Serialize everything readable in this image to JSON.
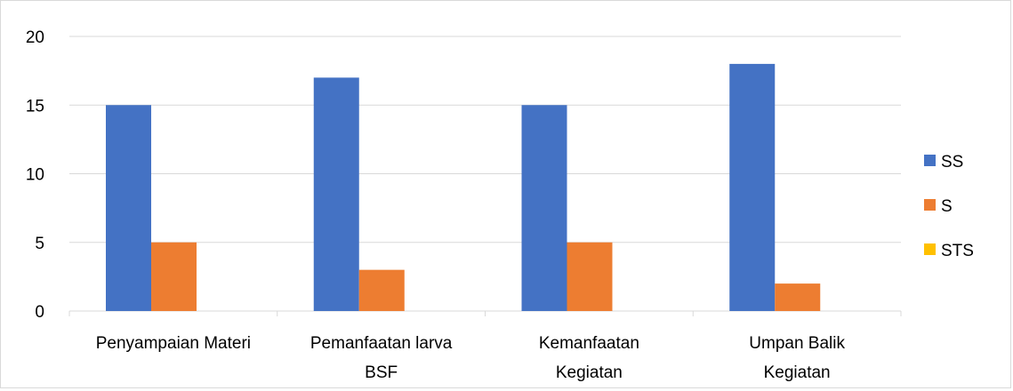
{
  "chart_data": {
    "type": "bar",
    "title": "",
    "xlabel": "",
    "ylabel": "",
    "categories": [
      [
        "Penyampaian Materi"
      ],
      [
        "Pemanfaatan larva",
        "BSF"
      ],
      [
        "Kemanfaatan",
        "Kegiatan"
      ],
      [
        "Umpan Balik",
        "Kegiatan"
      ]
    ],
    "series": [
      {
        "name": "SS",
        "color": "#4472c4",
        "values": [
          15,
          17,
          15,
          18
        ]
      },
      {
        "name": "S",
        "color": "#ed7d31",
        "values": [
          5,
          3,
          5,
          2
        ]
      },
      {
        "name": "STS",
        "color": "#ffc000",
        "values": [
          0,
          0,
          0,
          0
        ]
      }
    ],
    "ylim": [
      0,
      20
    ],
    "yticks": [
      0,
      5,
      10,
      15,
      20
    ],
    "grid": true,
    "legend_position": "right"
  }
}
